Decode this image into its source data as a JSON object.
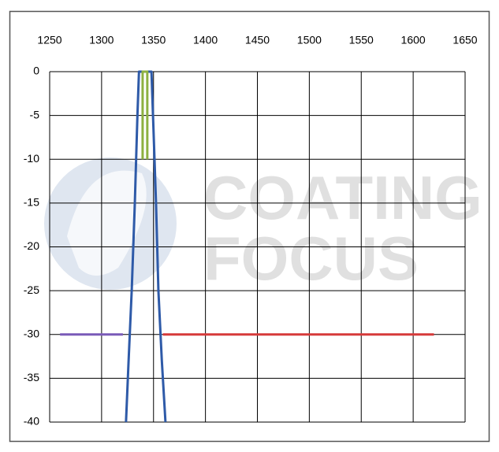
{
  "chart_data": {
    "type": "line",
    "annotations": [
      "COATING",
      "FOCUS"
    ],
    "xlim": [
      1250,
      1650
    ],
    "xticks": [
      1250,
      1300,
      1350,
      1400,
      1450,
      1500,
      1550,
      1600,
      1650
    ],
    "ylim": [
      -40,
      0
    ],
    "yticks": [
      0,
      -5,
      -10,
      -15,
      -20,
      -25,
      -30,
      -35,
      -40
    ],
    "grid": true,
    "series": [
      {
        "color": "#2e5aa8",
        "x": [
          1323.5,
          1326,
          1329,
          1332,
          1334.5,
          1336,
          1348,
          1349.5,
          1352.4,
          1354.7,
          1358,
          1361.5
        ],
        "values": [
          -40,
          -33,
          -25,
          -15,
          -5,
          0,
          0,
          -5,
          -15,
          -25,
          -33,
          -40
        ]
      },
      {
        "color": "#8db040",
        "x": [
          1339.5,
          1339.5,
          1344,
          1344
        ],
        "values": [
          -10,
          0,
          0,
          -10
        ]
      },
      {
        "color": "#7a5ab8",
        "x": [
          1260,
          1320.5
        ],
        "values": [
          -30,
          -30
        ]
      },
      {
        "color": "#d63a3a",
        "x": [
          1359,
          1620
        ],
        "values": [
          -30,
          -30
        ]
      }
    ]
  }
}
